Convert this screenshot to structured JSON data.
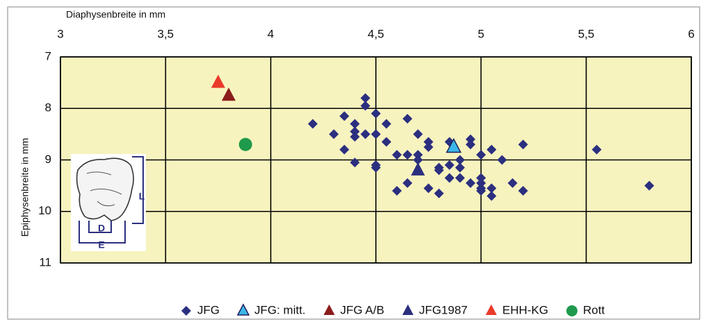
{
  "chart_data": {
    "type": "scatter",
    "x_label": "Diaphysenbreite in mm",
    "y_label": "Epiphysenbreite in mm",
    "xlim": [
      3,
      6
    ],
    "xticks": [
      3,
      {
        "value": 3.5,
        "label": "3,5"
      },
      4,
      {
        "value": 4.5,
        "label": "4,5"
      },
      5,
      {
        "value": 5.5,
        "label": "5,5"
      },
      6
    ],
    "ylim": [
      7,
      11
    ],
    "yticks": [
      7,
      8,
      9,
      10,
      11
    ],
    "y_inverted": true,
    "grid": true,
    "legend": "bottom-right",
    "annotations": [
      "L",
      "D",
      "E"
    ],
    "series": [
      {
        "name": "JFG",
        "marker": "diamond",
        "color": "#2b2f7f",
        "x": [
          4.2,
          4.3,
          4.35,
          4.35,
          4.4,
          4.4,
          4.4,
          4.4,
          4.45,
          4.45,
          4.45,
          4.5,
          4.5,
          4.5,
          4.5,
          4.55,
          4.55,
          4.6,
          4.6,
          4.65,
          4.65,
          4.65,
          4.7,
          4.7,
          4.7,
          4.75,
          4.75,
          4.75,
          4.8,
          4.8,
          4.8,
          4.85,
          4.85,
          4.85,
          4.9,
          4.9,
          4.9,
          4.95,
          4.95,
          4.95,
          5.0,
          5.0,
          5.0,
          5.0,
          5.0,
          5.05,
          5.05,
          5.05,
          5.1,
          5.15,
          5.2,
          5.2,
          5.55,
          5.8
        ],
        "values": [
          8.3,
          8.5,
          8.15,
          8.8,
          8.3,
          8.45,
          8.55,
          9.05,
          7.8,
          7.95,
          8.5,
          8.1,
          8.5,
          9.1,
          9.15,
          8.3,
          8.65,
          8.9,
          9.6,
          8.2,
          8.9,
          9.45,
          8.5,
          8.9,
          9.0,
          8.65,
          8.75,
          9.55,
          9.65,
          9.15,
          9.2,
          8.65,
          9.1,
          9.35,
          9.0,
          9.15,
          9.35,
          8.6,
          8.7,
          9.45,
          8.9,
          9.35,
          9.45,
          9.55,
          9.6,
          8.8,
          9.55,
          9.7,
          9.0,
          9.45,
          8.7,
          9.6,
          8.8,
          9.5
        ]
      },
      {
        "name": "JFG: mitt.",
        "marker": "triangle",
        "color": "#3cb6e8",
        "x": [
          4.87
        ],
        "values": [
          8.75
        ]
      },
      {
        "name": "JFG A/B",
        "marker": "triangle",
        "color": "#8b1c1c",
        "x": [
          3.8
        ],
        "values": [
          7.75
        ]
      },
      {
        "name": "JFG1987",
        "marker": "triangle",
        "color": "#2b2f7f",
        "x": [
          4.7
        ],
        "values": [
          9.2
        ]
      },
      {
        "name": "EHH-KG",
        "marker": "triangle",
        "color": "#ea3a2a",
        "x": [
          3.75
        ],
        "values": [
          7.5
        ]
      },
      {
        "name": "Rott",
        "marker": "circle",
        "color": "#1f9a4c",
        "x": [
          3.88
        ],
        "values": [
          8.7
        ]
      }
    ]
  }
}
